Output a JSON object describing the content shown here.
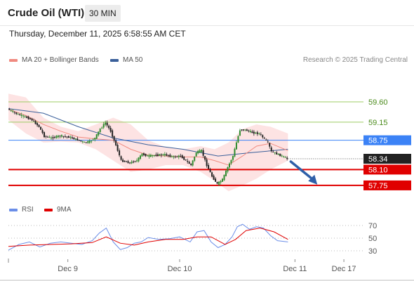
{
  "header": {
    "instrument": "Crude Oil (WTI)",
    "timeframe": "30 MIN",
    "datetime": "Thursday, December 11, 2025 6:58:55 AM CET"
  },
  "legend": {
    "ma20_label": "MA 20 + Bollinger Bands",
    "ma50_label": "MA 50",
    "rsi_label": "RSI",
    "rsi_ma_label": "9MA",
    "research": "Research © 2025 Trading Central"
  },
  "colors": {
    "ma20": "#f08a80",
    "ma50": "#3a5f9a",
    "bollinger_fill": "#fde3e3",
    "candle_up": "#2e8b2e",
    "candle_down": "#222222",
    "resistance": "#9ccc65",
    "pivot": "#3b82f6",
    "support": "#e00000",
    "arrow": "#2e5fa8",
    "rsi": "#6b8ee8",
    "rsi_ma": "#e00000"
  },
  "chart_data": [
    {
      "type": "candlestick",
      "title": "Crude Oil (WTI)",
      "timeframe": "30 MIN",
      "x_ticks": [
        "Dec 9",
        "Dec 10",
        "Dec 11",
        "Dec 17"
      ],
      "ylim": [
        57.5,
        60.3
      ],
      "current_price": 58.34,
      "levels": [
        {
          "value": 59.6,
          "label": "59.60",
          "kind": "resistance"
        },
        {
          "value": 59.15,
          "label": "59.15",
          "kind": "resistance"
        },
        {
          "value": 58.75,
          "label": "58.75",
          "kind": "pivot"
        },
        {
          "value": 58.1,
          "label": "58.10",
          "kind": "support"
        },
        {
          "value": 57.75,
          "label": "57.75",
          "kind": "support"
        }
      ],
      "current_label": "58.34",
      "path_points": [
        [
          0,
          59.44
        ],
        [
          6,
          59.32
        ],
        [
          10,
          59.27
        ],
        [
          14,
          59.2
        ],
        [
          18,
          59.05
        ],
        [
          21,
          58.84
        ],
        [
          25,
          58.8
        ],
        [
          30,
          58.85
        ],
        [
          35,
          58.82
        ],
        [
          40,
          58.76
        ],
        [
          44,
          58.7
        ],
        [
          47,
          58.72
        ],
        [
          50,
          58.8
        ],
        [
          53,
          59.0
        ],
        [
          56,
          59.14
        ],
        [
          59,
          58.95
        ],
        [
          62,
          58.64
        ],
        [
          65,
          58.3
        ],
        [
          70,
          58.25
        ],
        [
          74,
          58.3
        ],
        [
          77,
          58.45
        ],
        [
          80,
          58.4
        ],
        [
          85,
          58.42
        ],
        [
          90,
          58.43
        ],
        [
          95,
          58.38
        ],
        [
          99,
          58.4
        ],
        [
          102,
          58.3
        ],
        [
          105,
          58.2
        ],
        [
          108,
          58.48
        ],
        [
          111,
          58.52
        ],
        [
          114,
          58.2
        ],
        [
          117,
          57.95
        ],
        [
          120,
          57.78
        ],
        [
          123,
          57.88
        ],
        [
          126,
          58.15
        ],
        [
          129,
          58.4
        ],
        [
          131,
          58.7
        ],
        [
          133,
          58.98
        ],
        [
          136,
          58.98
        ],
        [
          140,
          58.92
        ],
        [
          144,
          58.9
        ],
        [
          147,
          58.78
        ],
        [
          149,
          58.7
        ],
        [
          151,
          58.5
        ],
        [
          154,
          58.45
        ],
        [
          157,
          58.4
        ],
        [
          160,
          58.34
        ]
      ],
      "x_total": 200,
      "tick_positions": [
        34,
        98,
        164,
        192
      ],
      "series": [
        {
          "name": "MA 20 + Bollinger Bands",
          "values": [
            [
              0,
              59.44
            ],
            [
              10,
              59.3
            ],
            [
              20,
              59.1
            ],
            [
              30,
              58.95
            ],
            [
              40,
              58.82
            ],
            [
              50,
              58.78
            ],
            [
              60,
              58.75
            ],
            [
              70,
              58.55
            ],
            [
              80,
              58.42
            ],
            [
              90,
              58.4
            ],
            [
              100,
              58.38
            ],
            [
              110,
              58.38
            ],
            [
              118,
              58.3
            ],
            [
              126,
              58.2
            ],
            [
              134,
              58.4
            ],
            [
              142,
              58.62
            ],
            [
              150,
              58.68
            ],
            [
              160,
              58.52
            ]
          ]
        },
        {
          "name": "MA 50",
          "values": [
            [
              0,
              59.45
            ],
            [
              20,
              59.35
            ],
            [
              40,
              59.05
            ],
            [
              60,
              58.8
            ],
            [
              80,
              58.65
            ],
            [
              100,
              58.55
            ],
            [
              120,
              58.4
            ],
            [
              140,
              58.48
            ],
            [
              160,
              58.55
            ]
          ]
        }
      ],
      "bollinger_upper": [
        [
          0,
          59.78
        ],
        [
          10,
          59.7
        ],
        [
          20,
          59.25
        ],
        [
          30,
          59.05
        ],
        [
          40,
          58.95
        ],
        [
          50,
          59.1
        ],
        [
          60,
          59.25
        ],
        [
          70,
          59.1
        ],
        [
          80,
          58.75
        ],
        [
          90,
          58.6
        ],
        [
          100,
          58.55
        ],
        [
          110,
          58.62
        ],
        [
          118,
          58.55
        ],
        [
          126,
          58.7
        ],
        [
          134,
          59.0
        ],
        [
          142,
          59.1
        ],
        [
          150,
          59.05
        ],
        [
          160,
          58.9
        ]
      ],
      "bollinger_lower": [
        [
          0,
          59.2
        ],
        [
          10,
          58.9
        ],
        [
          20,
          58.7
        ],
        [
          30,
          58.72
        ],
        [
          40,
          58.7
        ],
        [
          50,
          58.55
        ],
        [
          60,
          58.3
        ],
        [
          70,
          58.05
        ],
        [
          80,
          58.1
        ],
        [
          90,
          58.2
        ],
        [
          100,
          58.2
        ],
        [
          110,
          58.05
        ],
        [
          118,
          57.85
        ],
        [
          126,
          57.62
        ],
        [
          134,
          57.75
        ],
        [
          142,
          57.9
        ],
        [
          150,
          58.1
        ],
        [
          160,
          58.3
        ]
      ],
      "forecast_arrow": [
        [
          160,
          58.34
        ],
        [
          176,
          57.8
        ]
      ]
    },
    {
      "type": "line",
      "title": "RSI",
      "ylim": [
        20,
        80
      ],
      "y_ticks": [
        30,
        50,
        70
      ],
      "series": [
        {
          "name": "RSI",
          "values": [
            [
              0,
              31
            ],
            [
              6,
              40
            ],
            [
              12,
              44
            ],
            [
              18,
              36
            ],
            [
              24,
              42
            ],
            [
              30,
              44
            ],
            [
              36,
              42
            ],
            [
              42,
              40
            ],
            [
              48,
              46
            ],
            [
              52,
              58
            ],
            [
              56,
              66
            ],
            [
              60,
              44
            ],
            [
              64,
              32
            ],
            [
              68,
              35
            ],
            [
              72,
              42
            ],
            [
              76,
              44
            ],
            [
              80,
              51
            ],
            [
              86,
              48
            ],
            [
              92,
              49
            ],
            [
              98,
              52
            ],
            [
              104,
              44
            ],
            [
              108,
              60
            ],
            [
              112,
              62
            ],
            [
              116,
              44
            ],
            [
              120,
              35
            ],
            [
              124,
              40
            ],
            [
              128,
              52
            ],
            [
              131,
              68
            ],
            [
              134,
              72
            ],
            [
              138,
              64
            ],
            [
              142,
              68
            ],
            [
              146,
              66
            ],
            [
              150,
              54
            ],
            [
              154,
              46
            ],
            [
              160,
              44
            ]
          ]
        },
        {
          "name": "9MA",
          "values": [
            [
              0,
              37
            ],
            [
              12,
              39
            ],
            [
              24,
              40
            ],
            [
              36,
              41
            ],
            [
              48,
              43
            ],
            [
              56,
              52
            ],
            [
              64,
              42
            ],
            [
              72,
              39
            ],
            [
              80,
              44
            ],
            [
              90,
              48
            ],
            [
              100,
              48
            ],
            [
              108,
              52
            ],
            [
              116,
              52
            ],
            [
              124,
              40
            ],
            [
              130,
              48
            ],
            [
              136,
              62
            ],
            [
              144,
              66
            ],
            [
              152,
              60
            ],
            [
              160,
              48
            ]
          ]
        }
      ]
    }
  ]
}
